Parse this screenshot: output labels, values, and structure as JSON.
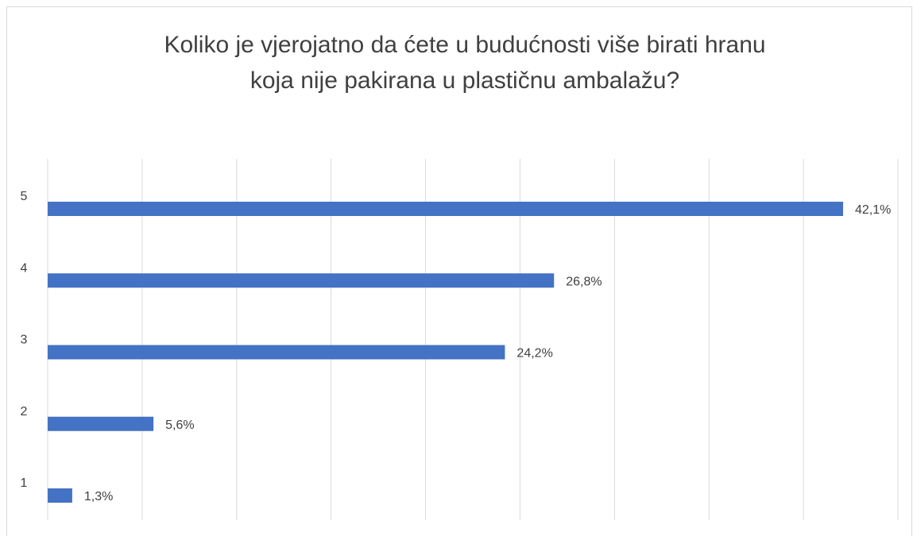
{
  "chart_data": {
    "type": "bar",
    "orientation": "horizontal",
    "title": [
      "Koliko je vjerojatno da ćete u budućnosti više birati hranu",
      "koja nije pakirana u plastičnu ambalažu?"
    ],
    "categories": [
      "5",
      "4",
      "3",
      "2",
      "1"
    ],
    "values": [
      42.1,
      26.8,
      24.2,
      5.6,
      1.3
    ],
    "value_labels": [
      "42,1%",
      "26,8%",
      "24,2%",
      "5,6%",
      "1,3%"
    ],
    "color": "#4472c4",
    "xlim": [
      0,
      45
    ],
    "xticks": [
      0,
      5,
      10,
      15,
      20,
      25,
      30,
      35,
      40,
      45
    ],
    "grid": true
  }
}
